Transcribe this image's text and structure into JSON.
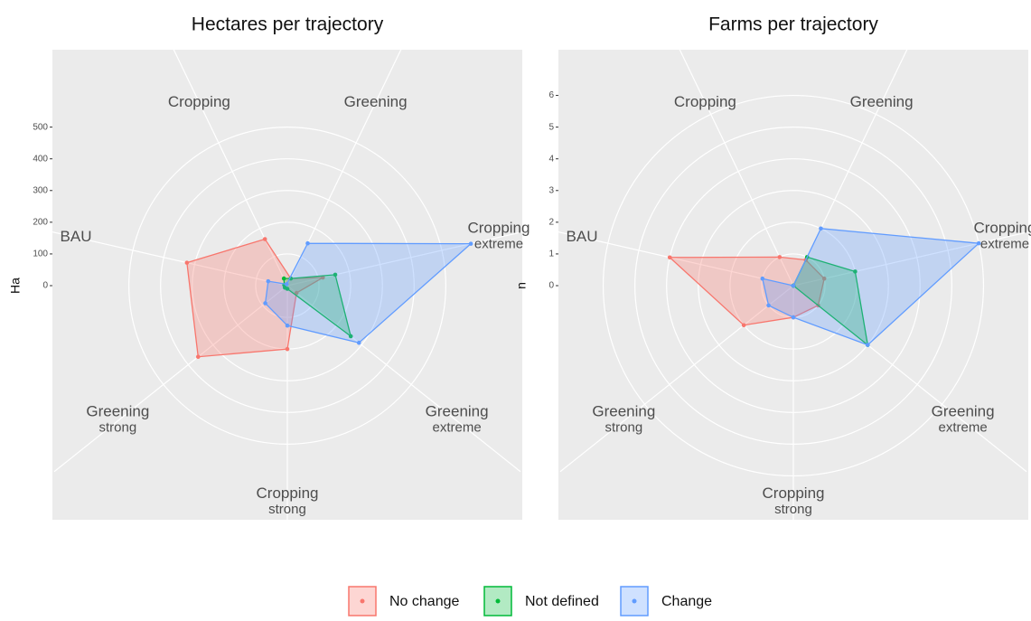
{
  "chart_data": [
    {
      "type": "radar",
      "title": "Hectares per trajectory",
      "y_label": "Ha",
      "categories": [
        "Greening",
        "Cropping extreme",
        "Greening extreme",
        "Cropping strong",
        "Greening strong",
        "BAU",
        "Cropping"
      ],
      "ylim": [
        0,
        670
      ],
      "yticks": [
        0,
        100,
        200,
        300,
        400,
        500
      ],
      "series": [
        {
          "name": "No change",
          "color": "#F8766D",
          "values": [
            25,
            115,
            37,
            200,
            360,
            325,
            163
          ]
        },
        {
          "name": "Not defined",
          "color": "#00BA38",
          "values": [
            25,
            155,
            256,
            10,
            10,
            10,
            25
          ]
        },
        {
          "name": "Change",
          "color": "#619CFF",
          "values": [
            148,
            594,
            289,
            126,
            89,
            62,
            5
          ]
        }
      ]
    },
    {
      "type": "radar",
      "title": "Farms per trajectory",
      "y_label": "n",
      "categories": [
        "Greening",
        "Cropping extreme",
        "Greening extreme",
        "Cropping strong",
        "Greening strong",
        "BAU",
        "Cropping"
      ],
      "ylim": [
        0,
        6.7
      ],
      "yticks": [
        0,
        1,
        2,
        3,
        4,
        5,
        6
      ],
      "series": [
        {
          "color": "#F8766D",
          "values": [
            0.9,
            1,
            1,
            1,
            2,
            4,
            1
          ]
        },
        {
          "color": "#00BA38",
          "values": [
            1,
            2,
            3,
            0,
            0,
            0,
            0
          ]
        },
        {
          "color": "#619CFF",
          "values": [
            2,
            6,
            3,
            1,
            1,
            1,
            0
          ]
        }
      ]
    }
  ]
}
